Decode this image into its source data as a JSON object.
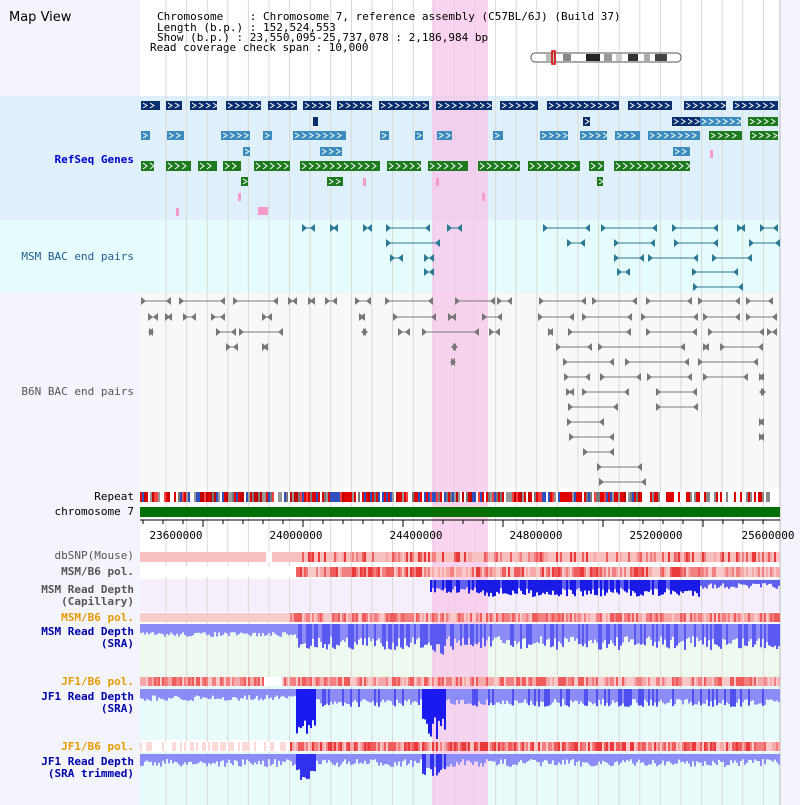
{
  "view": {
    "title": "Map View",
    "info": {
      "chromosome": "Chromosome    : Chromosome 7, reference assembly (C57BL/6J) (Build 37)",
      "length": "Length (b.p.) : 152,524,553",
      "show": "Show (b.p.) : 23,550,095-25,737,078 : 2,186,984 bp",
      "coverage": "Read coverage check span : 10,000"
    }
  },
  "tracks": {
    "refseq": {
      "label": "RefSeq Genes",
      "color": "#0000cc"
    },
    "msm_bac": {
      "label": "MSM BAC end pairs",
      "color": "#1f5f8f"
    },
    "b6n_bac": {
      "label": "B6N BAC end pairs",
      "color": "#555555"
    },
    "repeat": {
      "label": "Repeat"
    },
    "chromosome": {
      "label": "chromosome 7"
    },
    "dbsnp": {
      "label": "dbSNP(Mouse)",
      "color": "#555555"
    },
    "msm_b6_pol": {
      "label": "MSM/B6 pol.",
      "color": "#555555"
    },
    "msm_depth_cap": {
      "label": "MSM Read Depth\n(Capillary)",
      "color": "#555555"
    },
    "msm_b6_pol2": {
      "label": "MSM/B6 pol.",
      "color": "#e69a00"
    },
    "msm_depth_sra": {
      "label": "MSM Read Depth\n(SRA)",
      "color": "#0000aa"
    },
    "jf1_b6_pol": {
      "label": "JF1/B6 pol.",
      "color": "#e69a00"
    },
    "jf1_depth_sra": {
      "label": "JF1 Read Depth\n(SRA)",
      "color": "#0000aa"
    },
    "jf1_b6_pol2": {
      "label": "JF1/B6 pol.",
      "color": "#e69a00"
    },
    "jf1_depth_trim": {
      "label": "JF1 Read Depth\n(SRA trimmed)",
      "color": "#0000aa"
    }
  },
  "axis": {
    "ticks": [
      "23600000",
      "24000000",
      "24400000",
      "24800000",
      "25200000",
      "25600000"
    ]
  },
  "colors": {
    "refseq_dark": "#0a2f6e",
    "refseq_mid": "#3c8dbd",
    "refseq_green": "#1e7a1e",
    "highlight": "#f7c6ea",
    "chrom_bar": "#007000"
  }
}
